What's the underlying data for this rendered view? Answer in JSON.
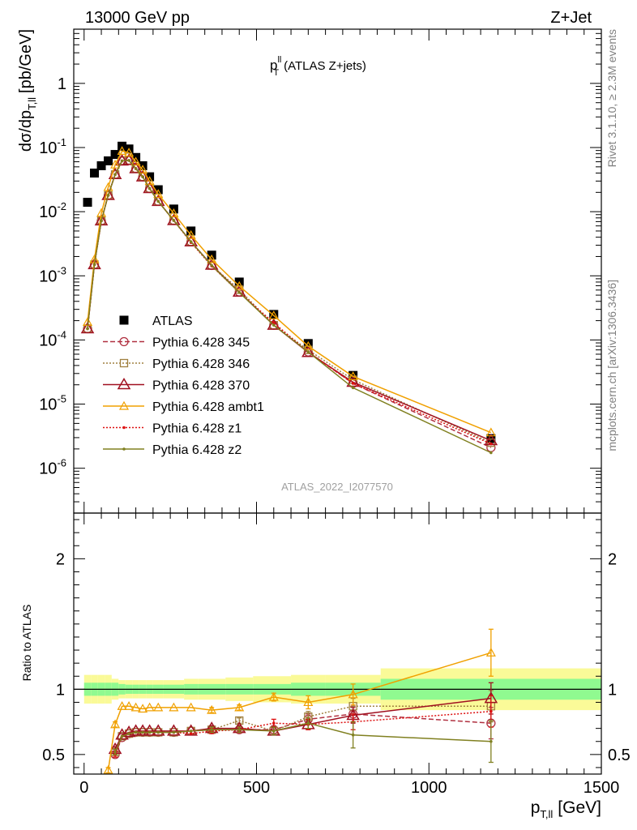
{
  "header": {
    "left": "13000 GeV pp",
    "right": "Z+Jet"
  },
  "plot_title": {
    "main": "p",
    "sup": "ll",
    "sub": "T",
    "rest": "(ATLAS Z+jets)"
  },
  "analysis_id": "ATLAS_2022_I2077570",
  "side_labels": {
    "top": "Rivet 3.1.10, ≥ 2.3M events",
    "bottom": "mcplots.cern.ch [arXiv:1306.3436]"
  },
  "ylabel_main": {
    "a": "dσ/dp",
    "sub": "T,ll",
    "b": "[pb/GeV]"
  },
  "ylabel_ratio": "Ratio to ATLAS",
  "xlabel": {
    "a": "p",
    "sub": "T,ll",
    "b": "[GeV]"
  },
  "colors": {
    "data": "#000000",
    "p345": "#b03040",
    "p346": "#a08040",
    "p370": "#a01020",
    "ambt1": "#f0a000",
    "z1": "#dd1010",
    "z2": "#808020",
    "band_inner": "#90fa90",
    "band_outer": "#fafa98"
  },
  "chart_data": [
    {
      "type": "line",
      "yscale": "log",
      "xlim": [
        -30,
        1500
      ],
      "ylim": [
        2e-07,
        7
      ],
      "x_ticks": [
        0,
        500,
        1000,
        1500
      ],
      "y_ticks": [
        "1e-6",
        "1e-5",
        "1e-4",
        "1e-3",
        "1e-2",
        "1e-1",
        "1"
      ],
      "legend_position": "lower-left",
      "series": [
        {
          "name": "ATLAS",
          "key": "data",
          "style": "square",
          "x": [
            10,
            30,
            50,
            70,
            90,
            110,
            130,
            150,
            170,
            190,
            215,
            260,
            310,
            370,
            450,
            550,
            650,
            780,
            1180
          ],
          "y": [
            0.014,
            0.04,
            0.052,
            0.062,
            0.078,
            0.105,
            0.095,
            0.07,
            0.052,
            0.035,
            0.022,
            0.011,
            0.005,
            0.0021,
            0.0008,
            0.00025,
            8.8e-05,
            2.8e-05,
            2.9e-06
          ]
        },
        {
          "name": "Pythia 6.428 345",
          "key": "p345",
          "style": "circle",
          "dash": "6,3",
          "x": [
            10,
            30,
            50,
            70,
            90,
            110,
            130,
            150,
            170,
            190,
            215,
            260,
            310,
            370,
            450,
            550,
            650,
            780,
            1180
          ],
          "y": [
            0.00015,
            0.0015,
            0.0072,
            0.018,
            0.038,
            0.062,
            0.063,
            0.047,
            0.035,
            0.023,
            0.0145,
            0.0073,
            0.0034,
            0.00145,
            0.00056,
            0.00017,
            6.5e-05,
            2.1e-05,
            2.1e-06
          ]
        },
        {
          "name": "Pythia 6.428 346",
          "key": "p346",
          "style": "square-open",
          "dash": "2,2",
          "x": [
            10,
            30,
            50,
            70,
            90,
            110,
            130,
            150,
            170,
            190,
            215,
            260,
            310,
            370,
            450,
            550,
            650,
            780,
            1180
          ],
          "y": [
            0.00015,
            0.0015,
            0.0072,
            0.018,
            0.038,
            0.062,
            0.063,
            0.047,
            0.035,
            0.023,
            0.0145,
            0.0073,
            0.0034,
            0.00145,
            0.00061,
            0.00017,
            7e-05,
            2.4e-05,
            2.5e-06
          ]
        },
        {
          "name": "Pythia 6.428 370",
          "key": "p370",
          "style": "triangle",
          "dash": "",
          "x": [
            10,
            30,
            50,
            70,
            90,
            110,
            130,
            150,
            170,
            190,
            215,
            260,
            310,
            370,
            450,
            550,
            650,
            780,
            1180
          ],
          "y": [
            0.00015,
            0.0015,
            0.0072,
            0.018,
            0.038,
            0.062,
            0.063,
            0.047,
            0.035,
            0.023,
            0.0145,
            0.0073,
            0.0034,
            0.00147,
            0.00056,
            0.00017,
            6.4e-05,
            2.2e-05,
            2.7e-06
          ]
        },
        {
          "name": "Pythia 6.428 ambt1",
          "key": "ambt1",
          "style": "triangle-small",
          "dash": "",
          "x": [
            10,
            30,
            50,
            70,
            90,
            110,
            130,
            150,
            170,
            190,
            215,
            260,
            310,
            370,
            450,
            550,
            650,
            780,
            1180
          ],
          "y": [
            0.00019,
            0.0018,
            0.0095,
            0.024,
            0.054,
            0.088,
            0.083,
            0.06,
            0.045,
            0.03,
            0.0188,
            0.0094,
            0.0043,
            0.0018,
            0.00069,
            0.00024,
            8e-05,
            2.7e-05,
            3.6e-06
          ]
        },
        {
          "name": "Pythia 6.428 z1",
          "key": "z1",
          "style": "dot",
          "dash": "2,2",
          "x": [
            10,
            30,
            50,
            70,
            90,
            110,
            130,
            150,
            170,
            190,
            215,
            260,
            310,
            370,
            450,
            550,
            650,
            780,
            1180
          ],
          "y": [
            0.00015,
            0.0015,
            0.0072,
            0.018,
            0.038,
            0.062,
            0.063,
            0.047,
            0.035,
            0.023,
            0.0145,
            0.0073,
            0.0033,
            0.00142,
            0.00055,
            0.000185,
            6.5e-05,
            2.1e-05,
            2.4e-06
          ]
        },
        {
          "name": "Pythia 6.428 z2",
          "key": "z2",
          "style": "dot",
          "dash": "",
          "x": [
            10,
            30,
            50,
            70,
            90,
            110,
            130,
            150,
            170,
            190,
            215,
            260,
            310,
            370,
            450,
            550,
            650,
            780,
            1180
          ],
          "y": [
            0.00015,
            0.0015,
            0.0072,
            0.018,
            0.038,
            0.062,
            0.063,
            0.047,
            0.035,
            0.023,
            0.0145,
            0.0073,
            0.0034,
            0.00145,
            0.00055,
            0.00017,
            6.5e-05,
            1.8e-05,
            1.75e-06
          ]
        }
      ]
    },
    {
      "type": "line",
      "yscale": "linear",
      "xlim": [
        -30,
        1500
      ],
      "ylim": [
        0.35,
        2.35
      ],
      "x_ticks": [
        0,
        500,
        1000,
        1500
      ],
      "y_ticks": [
        0.5,
        1,
        2
      ],
      "band_edges": [
        0,
        20,
        40,
        60,
        80,
        100,
        120,
        140,
        160,
        180,
        200,
        230,
        290,
        330,
        410,
        490,
        600,
        700,
        860,
        1500
      ],
      "band_inner": [
        0.05,
        0.05,
        0.05,
        0.05,
        0.05,
        0.04,
        0.035,
        0.035,
        0.035,
        0.035,
        0.035,
        0.035,
        0.04,
        0.04,
        0.04,
        0.04,
        0.05,
        0.05,
        0.08
      ],
      "band_outer": [
        0.11,
        0.11,
        0.11,
        0.11,
        0.08,
        0.07,
        0.07,
        0.07,
        0.07,
        0.07,
        0.07,
        0.07,
        0.08,
        0.08,
        0.09,
        0.1,
        0.11,
        0.11,
        0.16
      ],
      "series": [
        {
          "key": "p345",
          "style": "circle",
          "dash": "6,3",
          "x": [
            90,
            110,
            130,
            150,
            170,
            190,
            215,
            260,
            310,
            370,
            450,
            550,
            650,
            780,
            1180
          ],
          "y": [
            0.5,
            0.63,
            0.66,
            0.67,
            0.67,
            0.67,
            0.67,
            0.67,
            0.68,
            0.69,
            0.69,
            0.69,
            0.77,
            0.81,
            0.74
          ],
          "err": [
            0.02,
            0.01,
            0.01,
            0.01,
            0.01,
            0.01,
            0.01,
            0.01,
            0.01,
            0.02,
            0.02,
            0.03,
            0.04,
            0.06,
            0.12
          ]
        },
        {
          "key": "p346",
          "style": "square-open",
          "dash": "2,2",
          "x": [
            90,
            110,
            130,
            150,
            170,
            190,
            215,
            260,
            310,
            370,
            450,
            550,
            650,
            780,
            1180
          ],
          "y": [
            0.52,
            0.64,
            0.66,
            0.67,
            0.67,
            0.67,
            0.67,
            0.67,
            0.68,
            0.69,
            0.76,
            0.68,
            0.79,
            0.87,
            0.87
          ],
          "err": [
            0.02,
            0.01,
            0.01,
            0.01,
            0.01,
            0.01,
            0.01,
            0.01,
            0.01,
            0.02,
            0.02,
            0.03,
            0.04,
            0.06,
            0.12
          ]
        },
        {
          "key": "p370",
          "style": "triangle",
          "dash": "",
          "x": [
            90,
            110,
            130,
            150,
            170,
            190,
            215,
            260,
            310,
            370,
            450,
            550,
            650,
            780,
            1180
          ],
          "y": [
            0.54,
            0.65,
            0.67,
            0.68,
            0.68,
            0.68,
            0.68,
            0.68,
            0.68,
            0.7,
            0.7,
            0.68,
            0.73,
            0.8,
            0.93
          ],
          "err": [
            0.02,
            0.01,
            0.01,
            0.01,
            0.01,
            0.01,
            0.01,
            0.01,
            0.01,
            0.02,
            0.02,
            0.03,
            0.04,
            0.06,
            0.12
          ]
        },
        {
          "key": "ambt1",
          "style": "triangle-small",
          "dash": "",
          "x": [
            70,
            90,
            110,
            130,
            150,
            170,
            190,
            215,
            260,
            310,
            370,
            450,
            550,
            650,
            780,
            1180
          ],
          "y": [
            0.38,
            0.73,
            0.87,
            0.87,
            0.86,
            0.85,
            0.86,
            0.86,
            0.86,
            0.86,
            0.84,
            0.86,
            0.94,
            0.9,
            0.96,
            1.28
          ],
          "err": [
            0.02,
            0.02,
            0.01,
            0.01,
            0.01,
            0.01,
            0.01,
            0.01,
            0.01,
            0.01,
            0.02,
            0.02,
            0.03,
            0.05,
            0.08,
            0.18
          ]
        },
        {
          "key": "z1",
          "style": "dot",
          "dash": "2,2",
          "x": [
            90,
            110,
            130,
            150,
            170,
            190,
            215,
            260,
            310,
            370,
            450,
            550,
            650,
            780,
            1180
          ],
          "y": [
            0.5,
            0.64,
            0.66,
            0.67,
            0.67,
            0.67,
            0.67,
            0.67,
            0.66,
            0.68,
            0.69,
            0.74,
            0.73,
            0.75,
            0.83
          ],
          "err": [
            0.02,
            0.01,
            0.01,
            0.01,
            0.01,
            0.01,
            0.01,
            0.01,
            0.01,
            0.02,
            0.02,
            0.03,
            0.04,
            0.06,
            0.12
          ]
        },
        {
          "key": "z2",
          "style": "dot",
          "dash": "",
          "x": [
            90,
            110,
            130,
            150,
            170,
            190,
            215,
            260,
            310,
            370,
            450,
            550,
            650,
            780,
            1180
          ],
          "y": [
            0.52,
            0.64,
            0.66,
            0.67,
            0.67,
            0.67,
            0.67,
            0.67,
            0.68,
            0.69,
            0.69,
            0.68,
            0.74,
            0.65,
            0.6
          ],
          "err": [
            0.02,
            0.01,
            0.01,
            0.01,
            0.01,
            0.01,
            0.01,
            0.01,
            0.01,
            0.02,
            0.02,
            0.03,
            0.04,
            0.1,
            0.16
          ]
        }
      ]
    }
  ]
}
